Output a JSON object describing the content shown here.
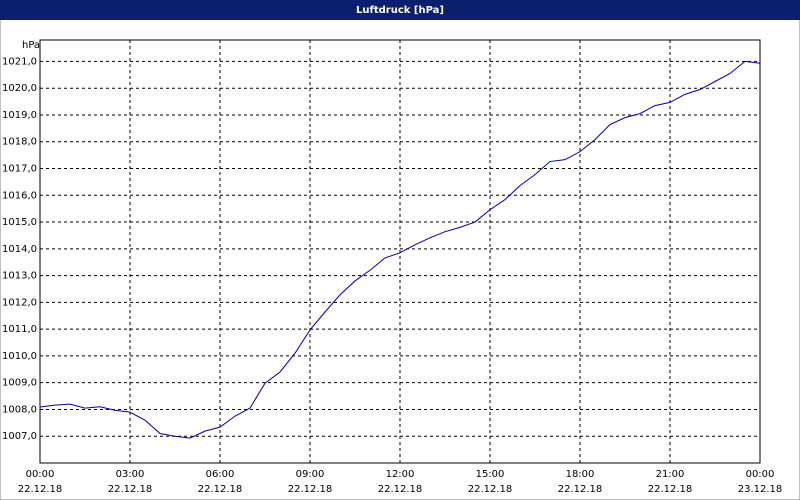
{
  "chart_data": {
    "type": "line",
    "title": "Luftdruck [hPa]",
    "y_unit": "hPa",
    "x": [
      0,
      0.5,
      1,
      1.5,
      2,
      2.5,
      3,
      3.5,
      4,
      4.5,
      5,
      5.5,
      6,
      6.5,
      7,
      7.5,
      8,
      8.5,
      9,
      9.5,
      10,
      10.5,
      11,
      11.5,
      12,
      12.5,
      13,
      13.5,
      14,
      14.5,
      15,
      15.5,
      16,
      16.5,
      17,
      17.5,
      18,
      18.5,
      19,
      19.5,
      20,
      20.5,
      21,
      21.5,
      22,
      22.5,
      23,
      23.5,
      24
    ],
    "series": [
      {
        "name": "Luftdruck",
        "color": "#0000a0",
        "values": [
          1008.09,
          1008.16,
          1008.2,
          1008.05,
          1008.1,
          1007.97,
          1007.9,
          1007.6,
          1007.1,
          1007.0,
          1006.93,
          1007.19,
          1007.34,
          1007.75,
          1008.05,
          1008.98,
          1009.4,
          1010.1,
          1010.97,
          1011.64,
          1012.28,
          1012.8,
          1013.2,
          1013.66,
          1013.85,
          1014.15,
          1014.41,
          1014.64,
          1014.8,
          1015.0,
          1015.46,
          1015.84,
          1016.36,
          1016.77,
          1017.26,
          1017.33,
          1017.63,
          1018.08,
          1018.64,
          1018.9,
          1019.05,
          1019.35,
          1019.47,
          1019.77,
          1019.95,
          1020.25,
          1020.55,
          1021.0,
          1020.93
        ]
      }
    ],
    "xlim": [
      0,
      24
    ],
    "xticks": [
      {
        "value": 0,
        "label": "00:00",
        "date": "22.12.18"
      },
      {
        "value": 3,
        "label": "03:00",
        "date": "22.12.18"
      },
      {
        "value": 6,
        "label": "06:00",
        "date": "22.12.18"
      },
      {
        "value": 9,
        "label": "09:00",
        "date": "22.12.18"
      },
      {
        "value": 12,
        "label": "12:00",
        "date": "22.12.18"
      },
      {
        "value": 15,
        "label": "15:00",
        "date": "22.12.18"
      },
      {
        "value": 18,
        "label": "18:00",
        "date": "22.12.18"
      },
      {
        "value": 21,
        "label": "21:00",
        "date": "22.12.18"
      },
      {
        "value": 24,
        "label": "00:00",
        "date": "23.12.18"
      }
    ],
    "ylim": [
      1006.0,
      1021.8
    ],
    "yticks": [
      {
        "value": 1007,
        "label": "1007,0"
      },
      {
        "value": 1008,
        "label": "1008,0"
      },
      {
        "value": 1009,
        "label": "1009,0"
      },
      {
        "value": 1010,
        "label": "1010,0"
      },
      {
        "value": 1011,
        "label": "1011,0"
      },
      {
        "value": 1012,
        "label": "1012,0"
      },
      {
        "value": 1013,
        "label": "1013,0"
      },
      {
        "value": 1014,
        "label": "1014,0"
      },
      {
        "value": 1015,
        "label": "1015,0"
      },
      {
        "value": 1016,
        "label": "1016,0"
      },
      {
        "value": 1017,
        "label": "1017,0"
      },
      {
        "value": 1018,
        "label": "1018,0"
      },
      {
        "value": 1019,
        "label": "1019,0"
      },
      {
        "value": 1020,
        "label": "1020,0"
      },
      {
        "value": 1021,
        "label": "1021,0"
      }
    ],
    "grid": true
  }
}
